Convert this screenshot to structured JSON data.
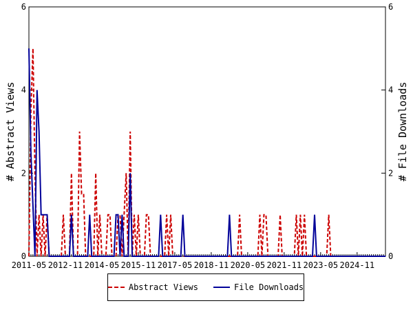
{
  "chart_data": {
    "type": "line",
    "title": "",
    "ylabel_left": "# Abstract Views",
    "ylabel_right": "# File Downloads",
    "ylim": [
      0,
      6
    ],
    "yticks": [
      0,
      2,
      4,
      6
    ],
    "xticks": [
      "2011-05",
      "2012-11",
      "2014-05",
      "2015-11",
      "2017-05",
      "2018-11",
      "2020-05",
      "2021-11",
      "2023-05",
      "2024-11"
    ],
    "xrange": [
      "2011-05",
      "2026-01"
    ],
    "grid": false,
    "legend_position": "bottom",
    "series": [
      {
        "name": "Abstract Views",
        "color": "#cc0000",
        "dash": "dashed",
        "points": [
          [
            "2011-05",
            0
          ],
          [
            "2011-06",
            3.5
          ],
          [
            "2011-07",
            5
          ],
          [
            "2011-08",
            2
          ],
          [
            "2011-09",
            0
          ],
          [
            "2011-10",
            1
          ],
          [
            "2011-11",
            0
          ],
          [
            "2011-12",
            1
          ],
          [
            "2012-01",
            0
          ],
          [
            "2012-02",
            1
          ],
          [
            "2012-03",
            0
          ],
          [
            "2012-09",
            0
          ],
          [
            "2012-10",
            1
          ],
          [
            "2012-11",
            0
          ],
          [
            "2013-01",
            0
          ],
          [
            "2013-02",
            2
          ],
          [
            "2013-03",
            0
          ],
          [
            "2013-05",
            0
          ],
          [
            "2013-06",
            3
          ],
          [
            "2013-07",
            1.5
          ],
          [
            "2013-08",
            1.5
          ],
          [
            "2013-09",
            0
          ],
          [
            "2014-01",
            0
          ],
          [
            "2014-02",
            2
          ],
          [
            "2014-03",
            0
          ],
          [
            "2014-04",
            1
          ],
          [
            "2014-05",
            0
          ],
          [
            "2014-07",
            0
          ],
          [
            "2014-08",
            1
          ],
          [
            "2014-09",
            1
          ],
          [
            "2014-10",
            0
          ],
          [
            "2014-12",
            0
          ],
          [
            "2015-01",
            1
          ],
          [
            "2015-02",
            1
          ],
          [
            "2015-03",
            0
          ],
          [
            "2015-04",
            1
          ],
          [
            "2015-05",
            2
          ],
          [
            "2015-06",
            0
          ],
          [
            "2015-07",
            3
          ],
          [
            "2015-08",
            0
          ],
          [
            "2015-09",
            1
          ],
          [
            "2015-10",
            0
          ],
          [
            "2015-11",
            1
          ],
          [
            "2015-12",
            0
          ],
          [
            "2016-02",
            0
          ],
          [
            "2016-03",
            1
          ],
          [
            "2016-04",
            1
          ],
          [
            "2016-05",
            0
          ],
          [
            "2016-12",
            0
          ],
          [
            "2017-01",
            1
          ],
          [
            "2017-02",
            0
          ],
          [
            "2017-03",
            1
          ],
          [
            "2017-04",
            0
          ],
          [
            "2019-12",
            0
          ],
          [
            "2020-01",
            1
          ],
          [
            "2020-02",
            0
          ],
          [
            "2020-10",
            0
          ],
          [
            "2020-11",
            1
          ],
          [
            "2020-12",
            0
          ],
          [
            "2021-01",
            1
          ],
          [
            "2021-02",
            1
          ],
          [
            "2021-03",
            0
          ],
          [
            "2021-08",
            0
          ],
          [
            "2021-09",
            1
          ],
          [
            "2021-10",
            0
          ],
          [
            "2022-04",
            0
          ],
          [
            "2022-05",
            1
          ],
          [
            "2022-06",
            0
          ],
          [
            "2022-07",
            1
          ],
          [
            "2022-08",
            0
          ],
          [
            "2022-09",
            1
          ],
          [
            "2022-10",
            0
          ],
          [
            "2023-08",
            0
          ],
          [
            "2023-09",
            1
          ],
          [
            "2023-10",
            0
          ],
          [
            "2026-01",
            0
          ]
        ]
      },
      {
        "name": "File Downloads",
        "color": "#000099",
        "dash": "solid",
        "points": [
          [
            "2011-05",
            5
          ],
          [
            "2011-06",
            2.5
          ],
          [
            "2011-07",
            1.2
          ],
          [
            "2011-08",
            0
          ],
          [
            "2011-09",
            4
          ],
          [
            "2011-10",
            3
          ],
          [
            "2011-11",
            1
          ],
          [
            "2012-01",
            1
          ],
          [
            "2012-02",
            1
          ],
          [
            "2012-03",
            0
          ],
          [
            "2013-01",
            0
          ],
          [
            "2013-02",
            1
          ],
          [
            "2013-03",
            0
          ],
          [
            "2013-10",
            0
          ],
          [
            "2013-11",
            1
          ],
          [
            "2013-12",
            0
          ],
          [
            "2014-11",
            0
          ],
          [
            "2014-12",
            1
          ],
          [
            "2015-01",
            1
          ],
          [
            "2015-02",
            0
          ],
          [
            "2015-03",
            1
          ],
          [
            "2015-04",
            0
          ],
          [
            "2015-06",
            0
          ],
          [
            "2015-07",
            2
          ],
          [
            "2015-08",
            0
          ],
          [
            "2016-09",
            0
          ],
          [
            "2016-10",
            1
          ],
          [
            "2016-11",
            0
          ],
          [
            "2017-08",
            0
          ],
          [
            "2017-09",
            1
          ],
          [
            "2017-10",
            0
          ],
          [
            "2019-07",
            0
          ],
          [
            "2019-08",
            1
          ],
          [
            "2019-09",
            0
          ],
          [
            "2023-01",
            0
          ],
          [
            "2023-02",
            1
          ],
          [
            "2023-03",
            0
          ],
          [
            "2026-01",
            0
          ]
        ]
      }
    ]
  }
}
